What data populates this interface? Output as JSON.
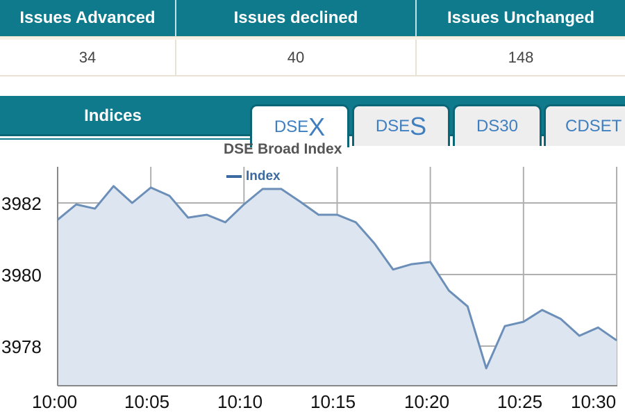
{
  "stats": {
    "headers": [
      "Issues Advanced",
      "Issues declined",
      "Issues Unchanged"
    ],
    "values": [
      "34",
      "40",
      "148"
    ]
  },
  "indices": {
    "title": "Indices",
    "tabs": [
      {
        "prefix": "DSE",
        "suffix": "X",
        "active": true
      },
      {
        "prefix": "DSE",
        "suffix": "S",
        "active": false
      },
      {
        "label": "DS30",
        "active": false
      },
      {
        "label": "CDSET",
        "active": false
      }
    ]
  },
  "colors": {
    "header_bg": "#0e7a8c",
    "line": "#6b8fb8",
    "area": "#dde6f0",
    "tab_text": "#3f7fc0",
    "legend": "#3b6aa0"
  },
  "chart_data": {
    "type": "area",
    "title": "DSE Broad Index",
    "legend": [
      "Index"
    ],
    "xlabel": "",
    "ylabel": "",
    "x_ticks": [
      "10:00",
      "10:05",
      "10:10",
      "10:15",
      "10:20",
      "10:25",
      "10:30"
    ],
    "y_ticks": [
      "3982",
      "3980",
      "3978"
    ],
    "ylim": [
      3976.9,
      3982.9
    ],
    "grid": true,
    "x": [
      "10:00",
      "10:01",
      "10:02",
      "10:03",
      "10:04",
      "10:05",
      "10:06",
      "10:07",
      "10:08",
      "10:09",
      "10:10",
      "10:11",
      "10:12",
      "10:13",
      "10:14",
      "10:15",
      "10:16",
      "10:17",
      "10:18",
      "10:19",
      "10:20",
      "10:21",
      "10:22",
      "10:23",
      "10:24",
      "10:25",
      "10:26",
      "10:27",
      "10:28",
      "10:29",
      "10:30"
    ],
    "series": [
      {
        "name": "Index",
        "values": [
          3981.53,
          3981.96,
          3981.84,
          3982.47,
          3982.0,
          3982.43,
          3982.2,
          3981.59,
          3981.67,
          3981.46,
          3981.96,
          3982.39,
          3982.39,
          3982.04,
          3981.67,
          3981.67,
          3981.46,
          3980.87,
          3980.14,
          3980.29,
          3980.35,
          3979.55,
          3979.11,
          3977.38,
          3978.56,
          3978.68,
          3979.01,
          3978.76,
          3978.29,
          3978.52,
          3978.16
        ]
      }
    ]
  }
}
